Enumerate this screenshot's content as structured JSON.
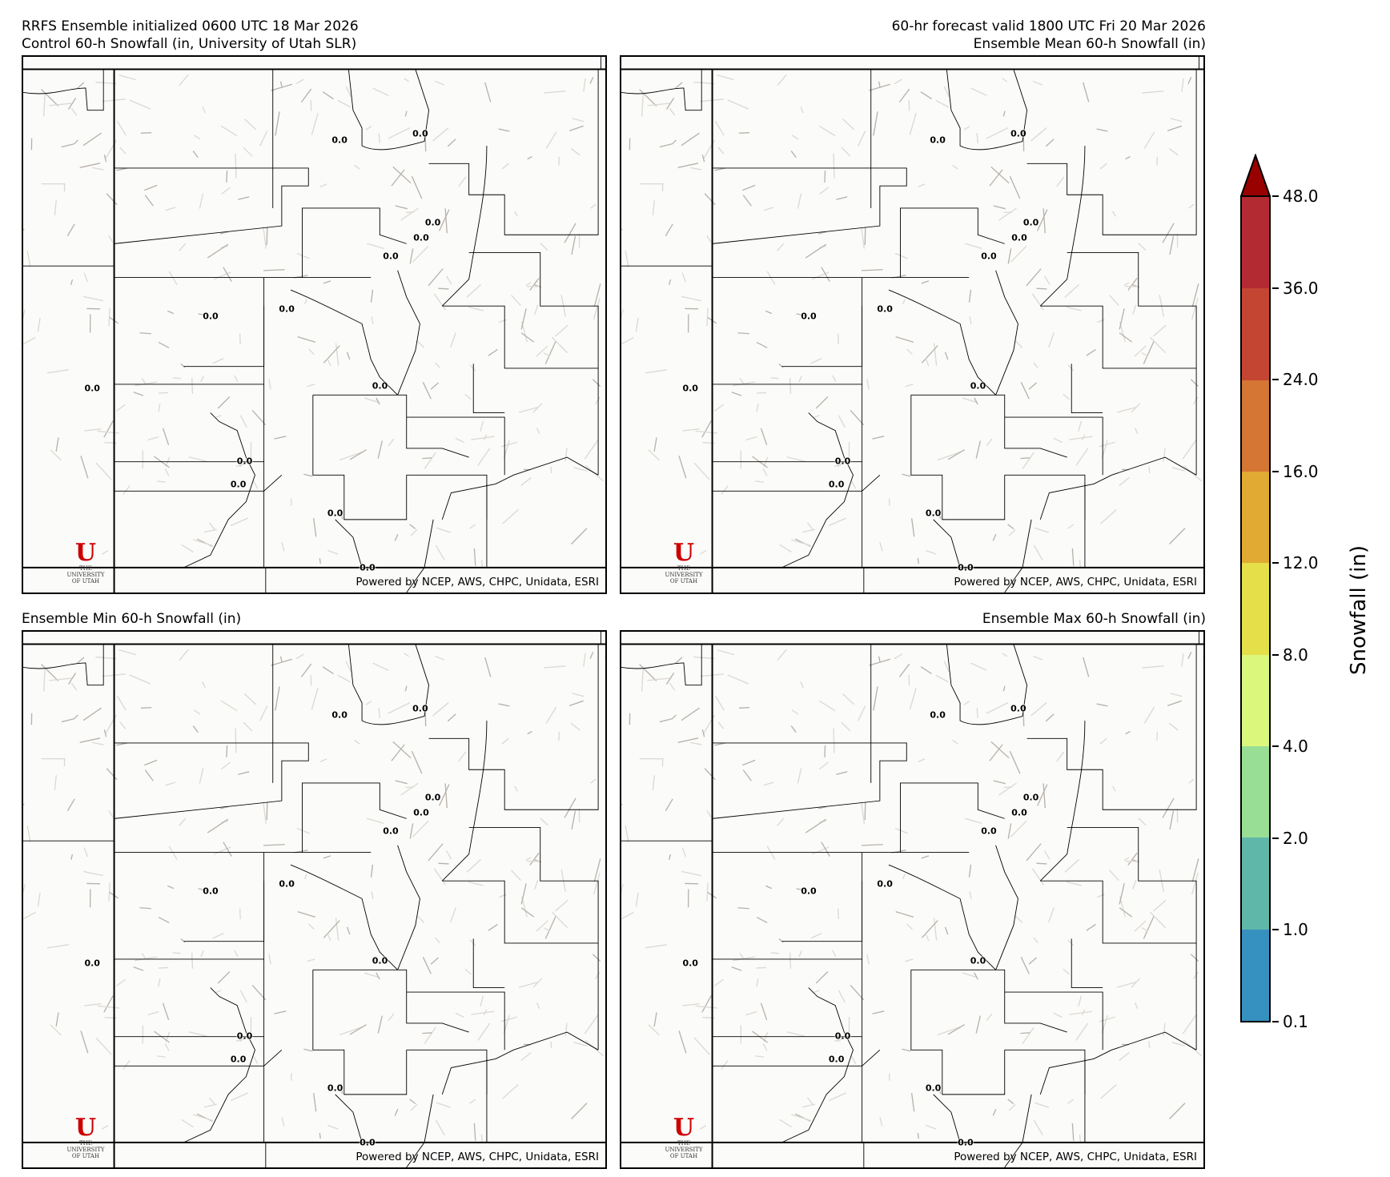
{
  "header": {
    "init_line": "RRFS Ensemble initialized 0600 UTC 18 Mar 2026",
    "valid_line": "60-hr forecast valid 1800 UTC Fri 20 Mar 2026"
  },
  "panels": [
    {
      "title": "Control 60-h Snowfall (in, University of Utah SLR)",
      "values": [
        "0.0",
        "0.0",
        "0.0",
        "0.0",
        "0.0",
        "0.0",
        "0.0",
        "0.0",
        "0.0",
        "0.0",
        "0.0",
        "0.0",
        "0.0"
      ]
    },
    {
      "title": "Ensemble Mean 60-h Snowfall (in)",
      "values": [
        "0.0",
        "0.0",
        "0.0",
        "0.0",
        "0.0",
        "0.0",
        "0.0",
        "0.0",
        "0.0",
        "0.0",
        "0.0",
        "0.0",
        "0.0"
      ]
    },
    {
      "title": "Ensemble Min 60-h Snowfall (in)",
      "values": [
        "0.0",
        "0.0",
        "0.0",
        "0.0",
        "0.0",
        "0.0",
        "0.0",
        "0.0",
        "0.0",
        "0.0",
        "0.0",
        "0.0",
        "0.0"
      ]
    },
    {
      "title": "Ensemble Max 60-h Snowfall (in)",
      "values": [
        "0.0",
        "0.0",
        "0.0",
        "0.0",
        "0.0",
        "0.0",
        "0.0",
        "0.0",
        "0.0",
        "0.0",
        "0.0",
        "0.0",
        "0.0"
      ]
    }
  ],
  "attribution": "Powered by NCEP, AWS, CHPC, Unidata, ESRI",
  "logo": {
    "mark": "U",
    "line1": "THE",
    "line2": "UNIVERSITY",
    "line3": "OF UTAH"
  },
  "colorbar": {
    "label": "Snowfall (in)",
    "ticks": [
      "0.1",
      "1.0",
      "2.0",
      "4.0",
      "8.0",
      "12.0",
      "16.0",
      "24.0",
      "36.0",
      "48.0"
    ],
    "colors": [
      "#3690c0",
      "#5fb7a9",
      "#98de94",
      "#dcf87c",
      "#e5df4a",
      "#e0aa33",
      "#d57634",
      "#c44532",
      "#b42a32"
    ],
    "extend_color": "#990000",
    "extend": "max"
  }
}
